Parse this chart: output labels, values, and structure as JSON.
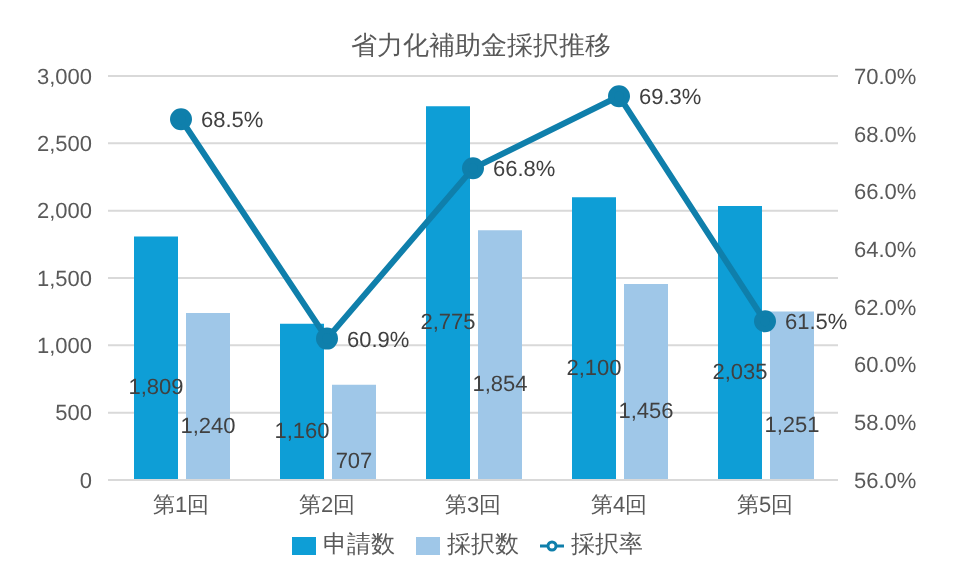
{
  "chart_data": {
    "type": "bar",
    "title": "省力化補助金採択推移",
    "categories": [
      "第1回",
      "第2回",
      "第3回",
      "第4回",
      "第5回"
    ],
    "series": [
      {
        "name": "申請数",
        "color": "#0e9ed6",
        "values": [
          1809,
          1160,
          2775,
          2100,
          2035
        ],
        "value_labels": [
          "1,809",
          "1,160",
          "2,775",
          "2,100",
          "2,035"
        ]
      },
      {
        "name": "採択数",
        "color": "#9fc7e8",
        "values": [
          1240,
          707,
          1854,
          1456,
          1251
        ],
        "value_labels": [
          "1,240",
          "707",
          "1,854",
          "1,456",
          "1,251"
        ]
      },
      {
        "name": "採択率",
        "type": "line",
        "axis": "y2",
        "color": "#0f7fab",
        "values": [
          68.5,
          60.9,
          66.8,
          69.3,
          61.5
        ],
        "value_labels": [
          "68.5%",
          "60.9%",
          "66.8%",
          "69.3%",
          "61.5%"
        ]
      }
    ],
    "ylim": [
      0,
      3000
    ],
    "yticks": [
      {
        "value": 0,
        "label": "0"
      },
      {
        "value": 500,
        "label": "500"
      },
      {
        "value": 1000,
        "label": "1,000"
      },
      {
        "value": 1500,
        "label": "1,500"
      },
      {
        "value": 2000,
        "label": "2,000"
      },
      {
        "value": 2500,
        "label": "2,500"
      },
      {
        "value": 3000,
        "label": "3,000"
      }
    ],
    "y2lim": [
      56,
      70
    ],
    "y2ticks": [
      {
        "value": 56,
        "label": "56.0%"
      },
      {
        "value": 58,
        "label": "58.0%"
      },
      {
        "value": 60,
        "label": "60.0%"
      },
      {
        "value": 62,
        "label": "62.0%"
      },
      {
        "value": 64,
        "label": "64.0%"
      },
      {
        "value": 66,
        "label": "66.0%"
      },
      {
        "value": 68,
        "label": "68.0%"
      },
      {
        "value": 70,
        "label": "70.0%"
      }
    ],
    "grid": "y",
    "legend": "bottom",
    "marker": "circle"
  }
}
